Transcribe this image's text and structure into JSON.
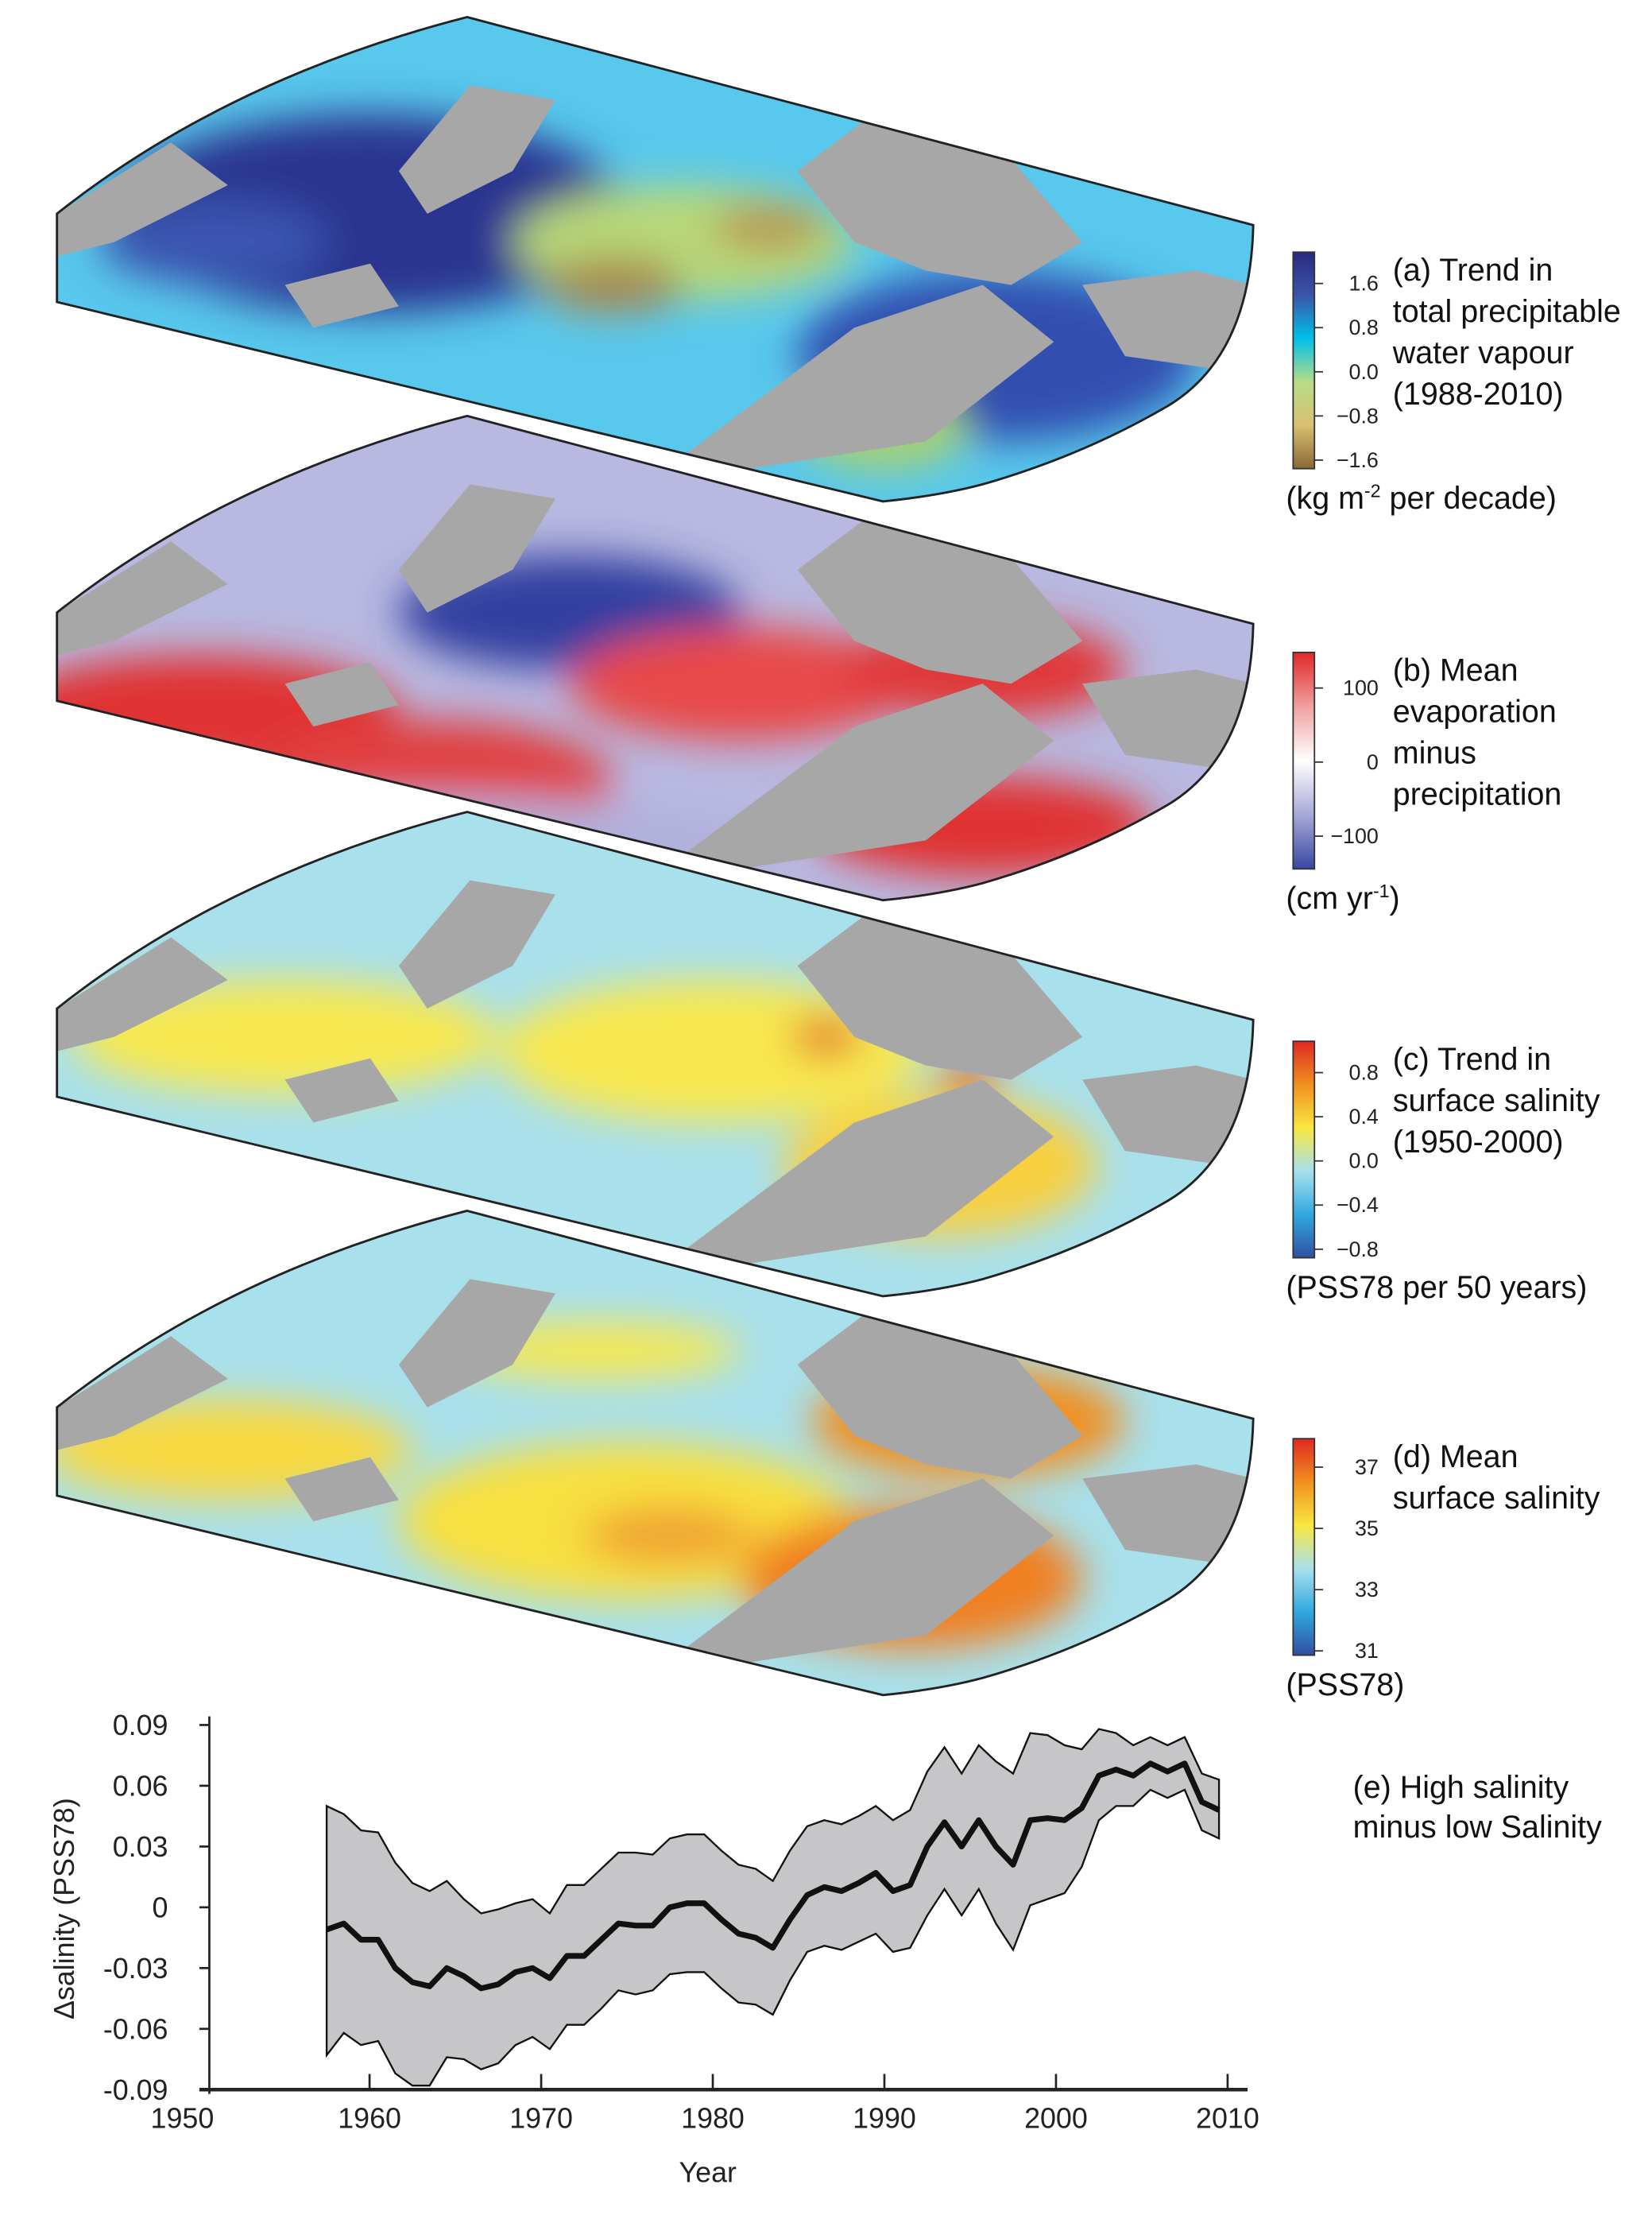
{
  "panels": [
    {
      "id": "a",
      "title_lines": [
        "(a) Trend in",
        "total precipitable",
        "water vapour",
        "(1988-2010)"
      ],
      "units_pre": "(kg m",
      "units_sup": "-2",
      "units_post": " per decade)",
      "ticks": [
        "1.6",
        "0.8",
        "0.0",
        "−0.8",
        "−1.6"
      ],
      "colors": [
        "#2a2a80",
        "#3b55a8",
        "#00c0e8",
        "#b8dc88",
        "#d8c070",
        "#8a6838"
      ]
    },
    {
      "id": "b",
      "title_lines": [
        "(b) Mean",
        "evaporation",
        "minus",
        "precipitation"
      ],
      "units_pre": "(cm yr",
      "units_sup": "-1",
      "units_post": ")",
      "ticks": [
        "100",
        "0",
        "−100"
      ],
      "colors": [
        "#e02828",
        "#f0a0a0",
        "#ffffff",
        "#a8a8d8",
        "#3848a0"
      ]
    },
    {
      "id": "c",
      "title_lines": [
        "(c) Trend in",
        "surface salinity",
        "(1950-2000)"
      ],
      "units_pre": "(PSS78 per 50 years)",
      "units_sup": "",
      "units_post": "",
      "ticks": [
        "0.8",
        "0.4",
        "0.0",
        "−0.4",
        "−0.8"
      ],
      "colors": [
        "#e02820",
        "#f09020",
        "#f8e840",
        "#a8e0ec",
        "#30a8e0",
        "#3050a0"
      ]
    },
    {
      "id": "d",
      "title_lines": [
        "(d) Mean",
        "surface salinity"
      ],
      "units_pre": "(PSS78)",
      "units_sup": "",
      "units_post": "",
      "ticks": [
        "37",
        "35",
        "33",
        "31"
      ],
      "colors": [
        "#e02820",
        "#f09020",
        "#f8e840",
        "#a8e0ec",
        "#30a8e0",
        "#3050a0"
      ]
    }
  ],
  "chart_data": {
    "type": "line",
    "title": "(e) High salinity minus low Salinity",
    "title_lines": [
      "(e) High salinity",
      "minus low Salinity"
    ],
    "xlabel": "Year",
    "ylabel": "Δsalinity (PSS78)",
    "xlim": [
      1950,
      2010
    ],
    "ylim": [
      -0.09,
      0.09
    ],
    "xticks": [
      "1950",
      "1960",
      "1970",
      "1980",
      "1990",
      "2000",
      "2010"
    ],
    "yticks": [
      "0.09",
      "0.06",
      "0.03",
      "0",
      "-0.03",
      "-0.06",
      "-0.09"
    ],
    "grid": false,
    "x": [
      1957.5,
      1958.5,
      1959.5,
      1960.5,
      1961.5,
      1962.5,
      1963.5,
      1964.5,
      1965.5,
      1966.5,
      1967.5,
      1968.5,
      1969.5,
      1970.5,
      1971.5,
      1972.5,
      1973.5,
      1974.5,
      1975.5,
      1976.5,
      1977.5,
      1978.5,
      1979.5,
      1980.5,
      1981.5,
      1982.5,
      1983.5,
      1984.5,
      1985.5,
      1986.5,
      1987.5,
      1988.5,
      1989.5,
      1990.5,
      1991.5,
      1992.5,
      1993.5,
      1994.5,
      1995.5,
      1996.5,
      1997.5,
      1998.5,
      1999.5,
      2000.5,
      2001.5,
      2002.5,
      2003.5,
      2004.5,
      2005.5,
      2006.5,
      2007.5,
      2008.5,
      2009.5
    ],
    "series": [
      {
        "role": "mean",
        "color": "#111111",
        "values": [
          -0.011,
          -0.008,
          -0.016,
          -0.016,
          -0.03,
          -0.037,
          -0.039,
          -0.03,
          -0.034,
          -0.04,
          -0.038,
          -0.032,
          -0.03,
          -0.035,
          -0.024,
          -0.024,
          -0.016,
          -0.008,
          -0.009,
          -0.009,
          0.0,
          0.002,
          0.002,
          -0.006,
          -0.013,
          -0.015,
          -0.02,
          -0.006,
          0.006,
          0.01,
          0.008,
          0.012,
          0.017,
          0.008,
          0.011,
          0.03,
          0.042,
          0.03,
          0.043,
          0.03,
          0.021,
          0.043,
          0.044,
          0.043,
          0.049,
          0.065,
          0.068,
          0.065,
          0.071,
          0.067,
          0.071,
          0.052,
          0.048
        ]
      },
      {
        "role": "upper",
        "color": "#111111",
        "values": [
          0.05,
          0.046,
          0.038,
          0.037,
          0.022,
          0.012,
          0.008,
          0.013,
          0.004,
          -0.003,
          -0.001,
          0.002,
          0.004,
          -0.003,
          0.011,
          0.011,
          0.019,
          0.027,
          0.027,
          0.026,
          0.034,
          0.036,
          0.036,
          0.028,
          0.021,
          0.019,
          0.013,
          0.028,
          0.04,
          0.043,
          0.041,
          0.045,
          0.05,
          0.043,
          0.048,
          0.067,
          0.079,
          0.066,
          0.08,
          0.072,
          0.066,
          0.086,
          0.085,
          0.08,
          0.078,
          0.088,
          0.086,
          0.08,
          0.084,
          0.08,
          0.084,
          0.066,
          0.063
        ]
      },
      {
        "role": "lower",
        "color": "#111111",
        "values": [
          -0.073,
          -0.062,
          -0.068,
          -0.066,
          -0.082,
          -0.088,
          -0.088,
          -0.074,
          -0.075,
          -0.08,
          -0.077,
          -0.068,
          -0.064,
          -0.07,
          -0.058,
          -0.058,
          -0.05,
          -0.041,
          -0.043,
          -0.041,
          -0.033,
          -0.032,
          -0.032,
          -0.04,
          -0.047,
          -0.048,
          -0.053,
          -0.036,
          -0.022,
          -0.019,
          -0.021,
          -0.017,
          -0.013,
          -0.022,
          -0.02,
          -0.004,
          0.009,
          -0.004,
          0.009,
          -0.008,
          -0.021,
          0.001,
          0.004,
          0.007,
          0.02,
          0.043,
          0.05,
          0.05,
          0.058,
          0.054,
          0.058,
          0.038,
          0.034
        ]
      }
    ],
    "band_color": "#c6c6c8"
  }
}
